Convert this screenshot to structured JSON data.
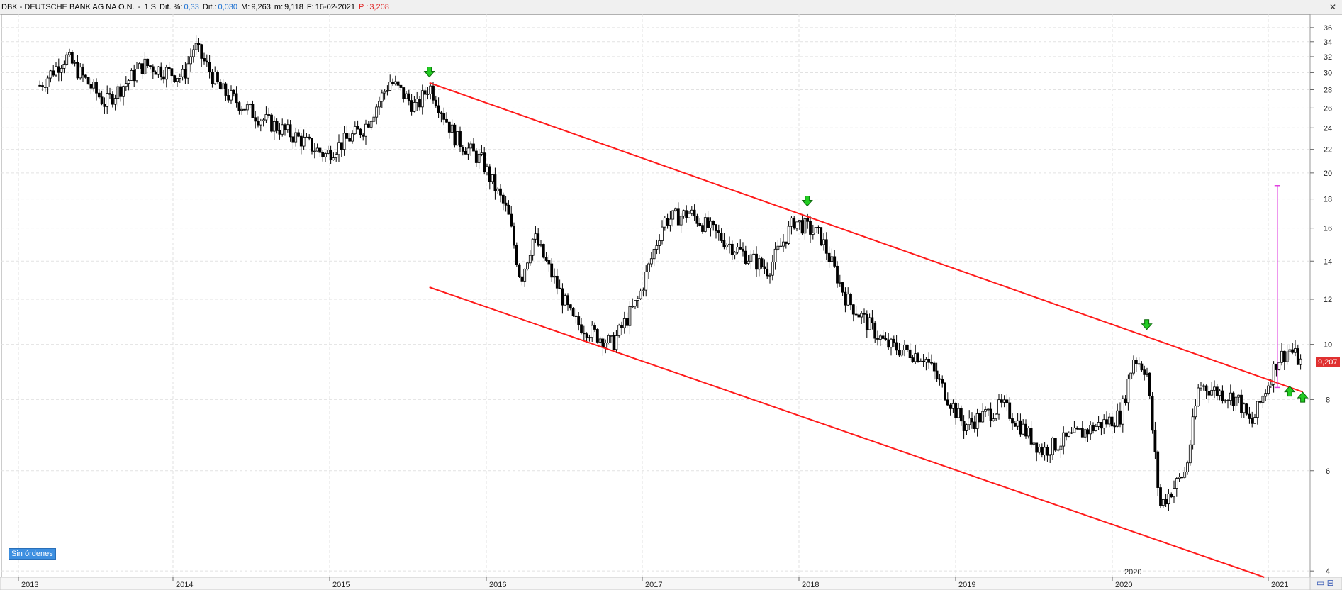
{
  "header": {
    "instrument": "DBK - DEUTSCHE BANK AG NA O.N.",
    "interval": "1 S",
    "dif_pct_label": "Dif. %:",
    "dif_pct_value": "0,33",
    "dif_label": "Dif.:",
    "dif_value": "0,030",
    "max_label": "M:",
    "max_value": "9,263",
    "min_label": "m:",
    "min_value": "9,118",
    "date_label": "F:",
    "date_value": "16-02-2021",
    "p_label": "P :",
    "p_value": "3,208"
  },
  "badges": {
    "orders": "Sin órdenes",
    "last_price": "9,207"
  },
  "colors": {
    "channel": "#ff1a1a",
    "measure": "#e040e0",
    "arrow": "#22cc22",
    "candle": "#000000",
    "price_tag": "#e03030"
  },
  "chart_data": {
    "type": "candlestick",
    "y_scale": "log",
    "ylim": [
      3.9,
      38
    ],
    "y_ticks": [
      4,
      6,
      8,
      10,
      12,
      14,
      16,
      18,
      20,
      22,
      24,
      26,
      28,
      30,
      32,
      34,
      36
    ],
    "x_tick_labels": [
      "2013",
      "2014",
      "2015",
      "2016",
      "2017",
      "2018",
      "2019",
      "2020",
      "2021"
    ],
    "extra_label": "2020",
    "price_path": [
      [
        "2013-01",
        28.5
      ],
      [
        "2013-03",
        32
      ],
      [
        "2013-06",
        26.5
      ],
      [
        "2013-09",
        31
      ],
      [
        "2013-12",
        29.5
      ],
      [
        "2014-01",
        33.5
      ],
      [
        "2014-03",
        28
      ],
      [
        "2014-06",
        25
      ],
      [
        "2014-09",
        23
      ],
      [
        "2014-11",
        21.5
      ],
      [
        "2015-02",
        24
      ],
      [
        "2015-04",
        29
      ],
      [
        "2015-06",
        26
      ],
      [
        "2015-07",
        28.5
      ],
      [
        "2015-09",
        23
      ],
      [
        "2015-11",
        21
      ],
      [
        "2016-01",
        17
      ],
      [
        "2016-02",
        13
      ],
      [
        "2016-03",
        15.5
      ],
      [
        "2016-06",
        11
      ],
      [
        "2016-09",
        10
      ],
      [
        "2016-11",
        12
      ],
      [
        "2017-01",
        16.5
      ],
      [
        "2017-03",
        17
      ],
      [
        "2017-06",
        15
      ],
      [
        "2017-09",
        13.5
      ],
      [
        "2017-11",
        16.5
      ],
      [
        "2018-01",
        15.5
      ],
      [
        "2018-03",
        12
      ],
      [
        "2018-06",
        10
      ],
      [
        "2018-09",
        9.5
      ],
      [
        "2018-12",
        7.2
      ],
      [
        "2019-03",
        7.8
      ],
      [
        "2019-06",
        6.5
      ],
      [
        "2019-09",
        7
      ],
      [
        "2019-12",
        7.5
      ],
      [
        "2020-01",
        9.5
      ],
      [
        "2020-02",
        9
      ],
      [
        "2020-03",
        5.2
      ],
      [
        "2020-05",
        6
      ],
      [
        "2020-06",
        8.5
      ],
      [
        "2020-09",
        8
      ],
      [
        "2020-10",
        7.2
      ],
      [
        "2020-12",
        9.4
      ],
      [
        "2021-01",
        9.8
      ],
      [
        "2021-02",
        9.2
      ]
    ],
    "channel_upper": [
      [
        "2015-07",
        28.8
      ],
      [
        "2021-02",
        8.25
      ]
    ],
    "channel_lower": [
      [
        "2015-07",
        12.6
      ],
      [
        "2020-11",
        3.9
      ]
    ],
    "measure_line": {
      "x": "2020-12",
      "y_top": 19,
      "y_bottom": 8.4
    },
    "signal_arrows": [
      {
        "x": "2015-07",
        "y": 30,
        "dir": "down"
      },
      {
        "x": "2017-12",
        "y": 17.8,
        "dir": "down"
      },
      {
        "x": "2020-02",
        "y": 10.8,
        "dir": "down"
      },
      {
        "x": "2021-01",
        "y": 8.3,
        "dir": "up"
      },
      {
        "x": "2021-02",
        "y": 8.1,
        "dir": "up"
      }
    ]
  }
}
